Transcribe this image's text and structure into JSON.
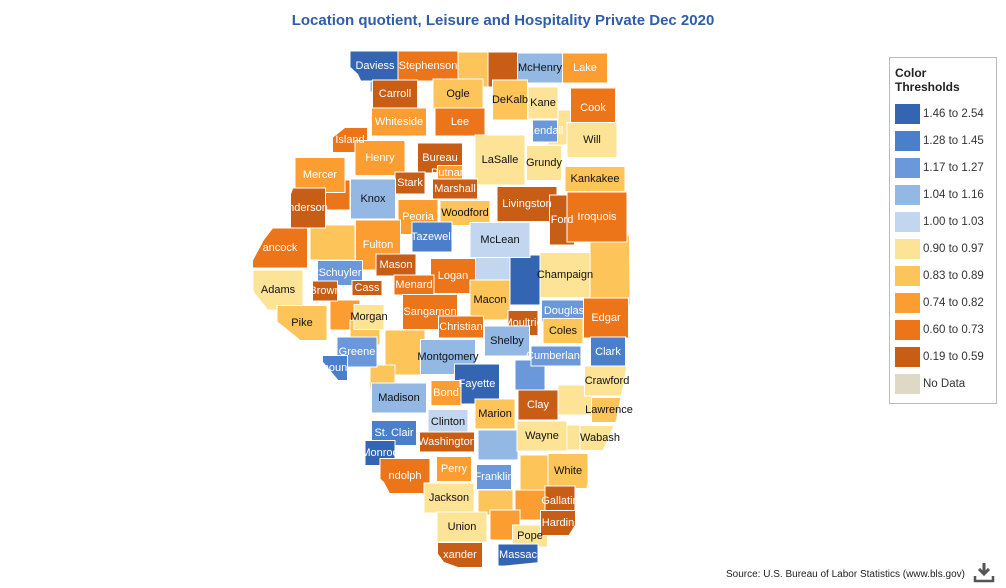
{
  "title": "Location quotient, Leisure and Hospitality Private Dec 2020",
  "legend": {
    "title": "Color Thresholds",
    "items": [
      {
        "label": "1.46 to 2.54",
        "color": "#3465b3"
      },
      {
        "label": "1.28 to 1.45",
        "color": "#4a7fcc"
      },
      {
        "label": "1.17 to 1.27",
        "color": "#6a98da"
      },
      {
        "label": "1.04 to 1.16",
        "color": "#94b8e4"
      },
      {
        "label": "1.00 to 1.03",
        "color": "#c3d6f0"
      },
      {
        "label": "0.90 to 0.97",
        "color": "#fde395"
      },
      {
        "label": "0.83 to 0.89",
        "color": "#fdc45a"
      },
      {
        "label": "0.74 to 0.82",
        "color": "#fc9d32"
      },
      {
        "label": "0.60 to 0.73",
        "color": "#ec7419"
      },
      {
        "label": "0.19 to 0.59",
        "color": "#c85d15"
      },
      {
        "label": "No Data",
        "color": "#ddd9c4"
      }
    ]
  },
  "unlabeled_regions": [
    6,
    9,
    3,
    8,
    6,
    5,
    6,
    7,
    6,
    0,
    2,
    6,
    4,
    6,
    5,
    3,
    6,
    7,
    5,
    6,
    7,
    5
  ],
  "counties": [
    {
      "name": "Daviess",
      "bin": 0
    },
    {
      "name": "Stephenson",
      "bin": 8
    },
    {
      "name": "McHenry",
      "bin": 3
    },
    {
      "name": "Lake",
      "bin": 7
    },
    {
      "name": "Carroll",
      "bin": 9
    },
    {
      "name": "Ogle",
      "bin": 6
    },
    {
      "name": "DeKalb",
      "bin": 6
    },
    {
      "name": "Kane",
      "bin": 5
    },
    {
      "name": "Cook",
      "bin": 8
    },
    {
      "name": "Whiteside",
      "bin": 7
    },
    {
      "name": "Lee",
      "bin": 8
    },
    {
      "name": "Kendall",
      "bin": 2
    },
    {
      "name": "Will",
      "bin": 5
    },
    {
      "name": "Island",
      "bin": 8
    },
    {
      "name": "Henry",
      "bin": 7
    },
    {
      "name": "Bureau",
      "bin": 9
    },
    {
      "name": "Putnam",
      "bin": 7
    },
    {
      "name": "LaSalle",
      "bin": 5
    },
    {
      "name": "Grundy",
      "bin": 5
    },
    {
      "name": "Mercer",
      "bin": 7
    },
    {
      "name": "Stark",
      "bin": 9
    },
    {
      "name": "Marshall",
      "bin": 9
    },
    {
      "name": "Kankakee",
      "bin": 6
    },
    {
      "name": "Knox",
      "bin": 3
    },
    {
      "name": "nderson",
      "bin": 9
    },
    {
      "name": "Peoria",
      "bin": 7
    },
    {
      "name": "Woodford",
      "bin": 6
    },
    {
      "name": "Livingston",
      "bin": 9
    },
    {
      "name": "Ford",
      "bin": 9
    },
    {
      "name": "Iroquois",
      "bin": 8
    },
    {
      "name": "ancock",
      "bin": 8
    },
    {
      "name": "Fulton",
      "bin": 7
    },
    {
      "name": "Tazewell",
      "bin": 1
    },
    {
      "name": "McLean",
      "bin": 4
    },
    {
      "name": "Schuyler",
      "bin": 2
    },
    {
      "name": "Mason",
      "bin": 9
    },
    {
      "name": "Logan",
      "bin": 8
    },
    {
      "name": "Champaign",
      "bin": 5
    },
    {
      "name": "Adams",
      "bin": 5
    },
    {
      "name": "Brown",
      "bin": 9
    },
    {
      "name": "Cass",
      "bin": 9
    },
    {
      "name": "Menard",
      "bin": 8
    },
    {
      "name": "Macon",
      "bin": 6
    },
    {
      "name": "Douglas",
      "bin": 2
    },
    {
      "name": "Edgar",
      "bin": 8
    },
    {
      "name": "Pike",
      "bin": 6
    },
    {
      "name": "Morgan",
      "bin": 5
    },
    {
      "name": "Sangamon",
      "bin": 8
    },
    {
      "name": "Christian",
      "bin": 8
    },
    {
      "name": "Moultrie",
      "bin": 9
    },
    {
      "name": "Coles",
      "bin": 6
    },
    {
      "name": "Shelby",
      "bin": 3
    },
    {
      "name": "Greene",
      "bin": 2
    },
    {
      "name": "houn",
      "bin": 1
    },
    {
      "name": "Montgomery",
      "bin": 3
    },
    {
      "name": "Cumberland",
      "bin": 2
    },
    {
      "name": "Clark",
      "bin": 1
    },
    {
      "name": "Fayette",
      "bin": 0
    },
    {
      "name": "Crawford",
      "bin": 5
    },
    {
      "name": "Madison",
      "bin": 3
    },
    {
      "name": "Bond",
      "bin": 7
    },
    {
      "name": "Marion",
      "bin": 6
    },
    {
      "name": "Clay",
      "bin": 9
    },
    {
      "name": "Lawrence",
      "bin": 6
    },
    {
      "name": "St. Clair",
      "bin": 1
    },
    {
      "name": "Clinton",
      "bin": 4
    },
    {
      "name": "Washington",
      "bin": 9
    },
    {
      "name": "Monroe",
      "bin": 0
    },
    {
      "name": "Wayne",
      "bin": 5
    },
    {
      "name": "Wabash",
      "bin": 5
    },
    {
      "name": "ndolph",
      "bin": 8
    },
    {
      "name": "Perry",
      "bin": 7
    },
    {
      "name": "Franklin",
      "bin": 2
    },
    {
      "name": "White",
      "bin": 6
    },
    {
      "name": "Jackson",
      "bin": 5
    },
    {
      "name": "Gallatin",
      "bin": 9
    },
    {
      "name": "Union",
      "bin": 5
    },
    {
      "name": "Pope",
      "bin": 5
    },
    {
      "name": "Hardin",
      "bin": 9
    },
    {
      "name": "xander",
      "bin": 9
    },
    {
      "name": "Massac",
      "bin": 0
    }
  ],
  "source": "Source: U.S. Bureau of Labor Statistics (www.bls.gov)"
}
